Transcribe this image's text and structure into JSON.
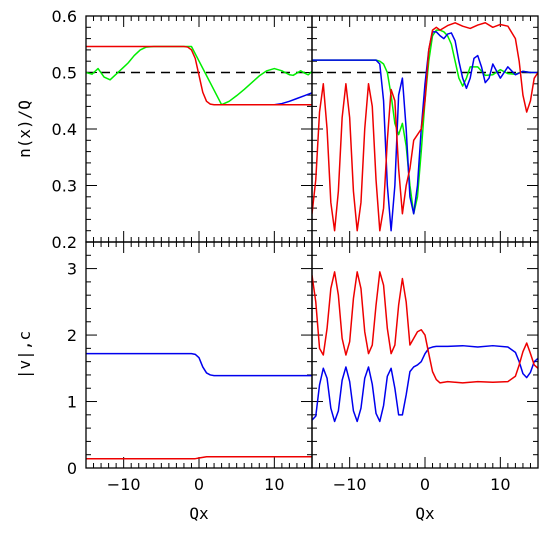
{
  "chart_data": {
    "type": "line",
    "layout": "2x2 panel grid, shared axes",
    "x_axis": {
      "label": "Qx",
      "range": [
        -15,
        15
      ],
      "major_ticks": [
        -10,
        0,
        10
      ],
      "tick_labels": [
        "−10",
        "0",
        "10"
      ],
      "minor_step": 1
    },
    "panels": [
      {
        "id": "top-left",
        "ylabel": "n(x)/Q",
        "ylim": [
          0.2,
          0.6
        ],
        "y_ticks": [
          0.2,
          0.3,
          0.4,
          0.5,
          0.6
        ],
        "y_tick_labels": [
          "0.2",
          "0.3",
          "0.4",
          "0.5",
          "0.6"
        ],
        "reference_line": {
          "y": 0.5,
          "style": "dashed",
          "color": "#000000"
        },
        "series": [
          {
            "color": "#00ee00",
            "x": [
              -15,
              -14.2,
              -13.4,
              -12.6,
              -11.8,
              -11.0,
              -10.2,
              -9.4,
              -8.6,
              -7.8,
              -7.0,
              -6.0,
              -1.0,
              3.0,
              4.0,
              5.0,
              6.0,
              7.0,
              8.0,
              9.0,
              10.0,
              11.0,
              12.0,
              12.5,
              13.0,
              13.5,
              14.0,
              14.5,
              15.0
            ],
            "y": [
              0.5,
              0.497,
              0.507,
              0.492,
              0.487,
              0.497,
              0.507,
              0.517,
              0.53,
              0.54,
              0.545,
              0.546,
              0.546,
              0.443,
              0.449,
              0.459,
              0.47,
              0.482,
              0.494,
              0.503,
              0.507,
              0.503,
              0.496,
              0.495,
              0.499,
              0.503,
              0.499,
              0.496,
              0.502
            ]
          },
          {
            "color": "#0000ee",
            "x": [
              7.0,
              10.0,
              11.0,
              12.0,
              13.0,
              14.0,
              15.0
            ],
            "y": [
              0.443,
              0.443,
              0.445,
              0.449,
              0.454,
              0.459,
              0.464
            ]
          },
          {
            "color": "#ee0000",
            "x": [
              -15,
              -2,
              -1.5,
              -1,
              -0.5,
              0,
              0.5,
              1,
              1.5,
              2,
              15
            ],
            "y": [
              0.546,
              0.546,
              0.545,
              0.54,
              0.525,
              0.495,
              0.465,
              0.449,
              0.444,
              0.443,
              0.443
            ]
          }
        ]
      },
      {
        "id": "top-right",
        "ylim": [
          0.2,
          0.6
        ],
        "reference_line": {
          "y": 0.5,
          "style": "dashed",
          "color": "#000000"
        },
        "series": [
          {
            "color": "#00ee00",
            "x": [
              -15,
              -6.5,
              -6.0,
              -5.5,
              -5.0,
              -4.5,
              -4.0,
              -3.5,
              -3.0,
              -2.5,
              -2.0,
              -1.5,
              -1.0,
              -0.5,
              0.0,
              0.5,
              1.0,
              1.5,
              2.0,
              2.5,
              3.0,
              3.5,
              4.0,
              4.5,
              5.0,
              5.5,
              6.0,
              7.0,
              8.0,
              9.0,
              10.0,
              11.0,
              12.0,
              13.0,
              14.0,
              15.0
            ],
            "y": [
              0.522,
              0.522,
              0.52,
              0.515,
              0.5,
              0.46,
              0.41,
              0.39,
              0.41,
              0.37,
              0.3,
              0.25,
              0.28,
              0.36,
              0.45,
              0.52,
              0.565,
              0.575,
              0.575,
              0.572,
              0.565,
              0.55,
              0.52,
              0.49,
              0.476,
              0.49,
              0.51,
              0.51,
              0.495,
              0.496,
              0.505,
              0.498,
              0.497,
              0.502,
              0.5,
              0.5
            ]
          },
          {
            "color": "#0000ee",
            "x": [
              -15,
              -6.5,
              -6.0,
              -5.5,
              -5.0,
              -4.5,
              -4.0,
              -3.5,
              -3.0,
              -2.5,
              -2.0,
              -1.5,
              -1.0,
              -0.5,
              0.0,
              0.5,
              1.0,
              1.5,
              2.0,
              2.5,
              3.0,
              3.5,
              4.0,
              4.5,
              5.0,
              5.5,
              6.0,
              6.5,
              7.0,
              7.5,
              8.0,
              8.5,
              9.0,
              10.0,
              11.0,
              12.0,
              13.0,
              14.0,
              15.0
            ],
            "y": [
              0.522,
              0.522,
              0.515,
              0.45,
              0.3,
              0.22,
              0.3,
              0.46,
              0.49,
              0.4,
              0.28,
              0.25,
              0.3,
              0.4,
              0.48,
              0.54,
              0.572,
              0.572,
              0.565,
              0.56,
              0.568,
              0.57,
              0.556,
              0.52,
              0.49,
              0.472,
              0.49,
              0.525,
              0.53,
              0.51,
              0.482,
              0.49,
              0.515,
              0.49,
              0.51,
              0.496,
              0.502,
              0.5,
              0.5
            ]
          },
          {
            "color": "#ee0000",
            "x": [
              -15,
              -14.5,
              -14.0,
              -13.5,
              -13.0,
              -12.5,
              -12.0,
              -11.5,
              -11.0,
              -10.5,
              -10.0,
              -9.5,
              -9.0,
              -8.5,
              -8.0,
              -7.5,
              -7.0,
              -6.5,
              -6.0,
              -5.5,
              -5.0,
              -4.5,
              -4.0,
              -3.5,
              -3.0,
              -2.5,
              -2.0,
              -1.5,
              -1.0,
              -0.5,
              0.0,
              0.5,
              1.0,
              1.5,
              2.0,
              3.0,
              4.0,
              5.0,
              6.0,
              7.0,
              8.0,
              9.0,
              10.0,
              11.0,
              12.0,
              12.5,
              13.0,
              13.5,
              14.0,
              14.5,
              15.0
            ],
            "y": [
              0.25,
              0.31,
              0.43,
              0.48,
              0.4,
              0.27,
              0.22,
              0.29,
              0.42,
              0.48,
              0.42,
              0.29,
              0.22,
              0.27,
              0.4,
              0.48,
              0.44,
              0.31,
              0.22,
              0.26,
              0.38,
              0.47,
              0.45,
              0.33,
              0.25,
              0.3,
              0.33,
              0.38,
              0.39,
              0.4,
              0.45,
              0.54,
              0.575,
              0.58,
              0.575,
              0.583,
              0.588,
              0.582,
              0.578,
              0.584,
              0.588,
              0.58,
              0.585,
              0.582,
              0.56,
              0.52,
              0.46,
              0.43,
              0.45,
              0.49,
              0.5
            ]
          }
        ]
      },
      {
        "id": "bottom-left",
        "ylabel": "|v|,c",
        "ylim": [
          0,
          3.4
        ],
        "y_ticks": [
          0,
          1,
          2,
          3
        ],
        "y_tick_labels": [
          "0",
          "1",
          "2",
          "3"
        ],
        "series": [
          {
            "color": "#0000ee",
            "x": [
              -15,
              -1,
              -0.5,
              0,
              0.5,
              1,
              1.5,
              2,
              15
            ],
            "y": [
              1.72,
              1.72,
              1.71,
              1.66,
              1.52,
              1.43,
              1.4,
              1.39,
              1.39
            ]
          },
          {
            "color": "#ee0000",
            "x": [
              -15,
              -1,
              -0.5,
              0,
              0.5,
              1,
              15
            ],
            "y": [
              0.14,
              0.14,
              0.14,
              0.15,
              0.16,
              0.17,
              0.17
            ]
          }
        ]
      },
      {
        "id": "bottom-right",
        "ylim": [
          0,
          3.4
        ],
        "series": [
          {
            "color": "#0000ee",
            "x": [
              -15,
              -14.5,
              -14.0,
              -13.5,
              -13.0,
              -12.5,
              -12.0,
              -11.5,
              -11.0,
              -10.5,
              -10.0,
              -9.5,
              -9.0,
              -8.5,
              -8.0,
              -7.5,
              -7.0,
              -6.5,
              -6.0,
              -5.5,
              -5.0,
              -4.5,
              -4.0,
              -3.5,
              -3.0,
              -2.5,
              -2.0,
              -1.5,
              -1.0,
              -0.5,
              0.0,
              0.5,
              1.0,
              1.5,
              2.0,
              3.0,
              5.0,
              7.0,
              9.0,
              11.0,
              12.0,
              12.5,
              13.0,
              13.5,
              14.0,
              14.5,
              15.0
            ],
            "y": [
              0.72,
              0.78,
              1.25,
              1.5,
              1.35,
              0.9,
              0.7,
              0.86,
              1.32,
              1.52,
              1.3,
              0.86,
              0.7,
              0.9,
              1.35,
              1.52,
              1.26,
              0.82,
              0.7,
              0.94,
              1.38,
              1.5,
              1.2,
              0.8,
              0.8,
              1.1,
              1.45,
              1.52,
              1.55,
              1.6,
              1.72,
              1.8,
              1.82,
              1.83,
              1.83,
              1.83,
              1.84,
              1.82,
              1.84,
              1.82,
              1.74,
              1.6,
              1.42,
              1.36,
              1.44,
              1.6,
              1.65
            ]
          },
          {
            "color": "#ee0000",
            "x": [
              -15,
              -14.5,
              -14.0,
              -13.5,
              -13.0,
              -12.5,
              -12.0,
              -11.5,
              -11.0,
              -10.5,
              -10.0,
              -9.5,
              -9.0,
              -8.5,
              -8.0,
              -7.5,
              -7.0,
              -6.5,
              -6.0,
              -5.5,
              -5.0,
              -4.5,
              -4.0,
              -3.5,
              -3.0,
              -2.5,
              -2.0,
              -1.5,
              -1.0,
              -0.5,
              0.0,
              0.5,
              1.0,
              1.5,
              2.0,
              3.0,
              5.0,
              7.0,
              9.0,
              11.0,
              12.0,
              12.5,
              13.0,
              13.5,
              14.0,
              14.5,
              15.0
            ],
            "y": [
              2.9,
              2.5,
              1.8,
              1.7,
              2.1,
              2.7,
              2.95,
              2.6,
              1.95,
              1.7,
              1.9,
              2.55,
              2.95,
              2.7,
              2.05,
              1.72,
              1.85,
              2.45,
              2.95,
              2.75,
              2.1,
              1.72,
              1.85,
              2.45,
              2.85,
              2.5,
              1.85,
              1.95,
              2.05,
              2.08,
              2.0,
              1.72,
              1.45,
              1.33,
              1.28,
              1.3,
              1.28,
              1.3,
              1.29,
              1.3,
              1.38,
              1.55,
              1.75,
              1.88,
              1.72,
              1.55,
              1.5
            ]
          }
        ]
      }
    ]
  }
}
